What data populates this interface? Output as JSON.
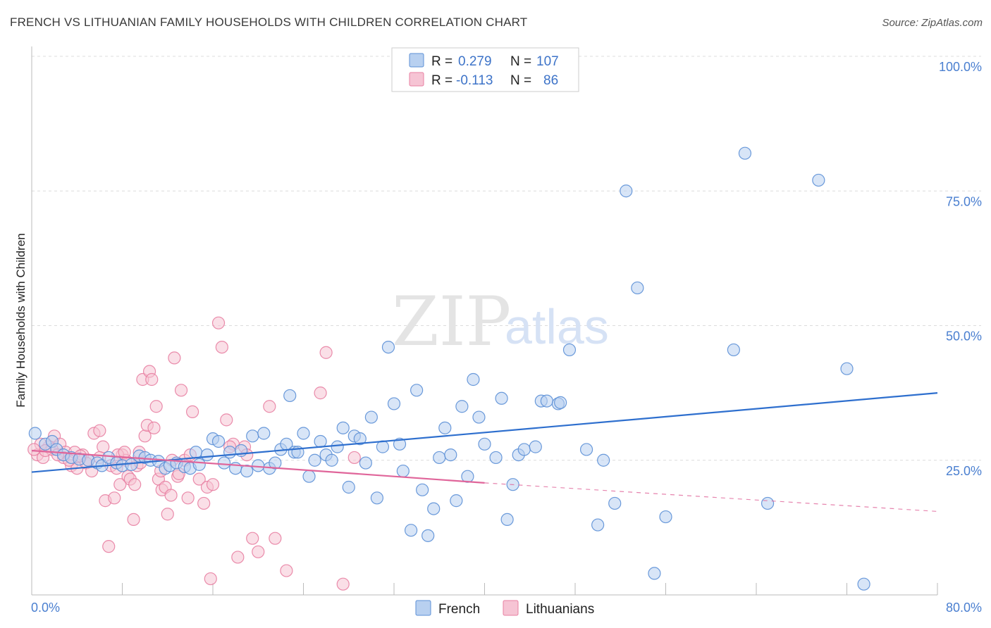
{
  "header": {
    "title": "FRENCH VS LITHUANIAN FAMILY HOUSEHOLDS WITH CHILDREN CORRELATION CHART",
    "source": "Source: ZipAtlas.com"
  },
  "legend": {
    "r_label": "R =",
    "n_label": "N =",
    "french_r": "0.279",
    "french_n": "107",
    "lith_r": "-0.113",
    "lith_n": "86"
  },
  "watermark": {
    "zip": "ZIP",
    "atlas": "atlas"
  },
  "chart_data": {
    "type": "scatter",
    "ylabel": "Family Households with Children",
    "xlim": [
      0,
      80
    ],
    "ylim": [
      0,
      100
    ],
    "x_tick_labels": [
      "0.0%",
      "80.0%"
    ],
    "y_tick_labels": [
      "25.0%",
      "50.0%",
      "75.0%",
      "100.0%"
    ],
    "y_ticks": [
      25,
      50,
      75,
      100
    ],
    "grid": true,
    "colors": {
      "french": "#5b8fd6",
      "french_fill": "#b8d0f0",
      "lith": "#e87fa2",
      "lith_fill": "#f6c4d4",
      "french_line": "#2e6fce",
      "lith_line": "#e0659a"
    },
    "series": [
      {
        "name": "French",
        "trend": {
          "x0": 0,
          "y0": 22.8,
          "x1": 80,
          "y1": 37.5
        },
        "points": [
          [
            0.3,
            30.0
          ],
          [
            1.2,
            28.0
          ],
          [
            1.8,
            28.5
          ],
          [
            2.2,
            27.0
          ],
          [
            2.8,
            26.0
          ],
          [
            3.5,
            25.5
          ],
          [
            4.2,
            25.2
          ],
          [
            5.0,
            25.0
          ],
          [
            5.8,
            24.5
          ],
          [
            6.2,
            24.0
          ],
          [
            6.8,
            25.5
          ],
          [
            7.5,
            24.5
          ],
          [
            8.0,
            24.0
          ],
          [
            8.8,
            24.2
          ],
          [
            9.5,
            25.8
          ],
          [
            10.0,
            25.5
          ],
          [
            10.5,
            25.0
          ],
          [
            11.2,
            24.8
          ],
          [
            11.8,
            23.5
          ],
          [
            12.2,
            24.0
          ],
          [
            12.8,
            24.5
          ],
          [
            13.5,
            23.8
          ],
          [
            14.0,
            23.5
          ],
          [
            14.5,
            26.5
          ],
          [
            14.8,
            24.2
          ],
          [
            15.5,
            26.0
          ],
          [
            16.0,
            29.0
          ],
          [
            16.5,
            28.5
          ],
          [
            17.0,
            24.5
          ],
          [
            17.5,
            26.5
          ],
          [
            18.0,
            23.5
          ],
          [
            18.5,
            26.8
          ],
          [
            19.0,
            23.0
          ],
          [
            19.5,
            29.5
          ],
          [
            20.0,
            24.0
          ],
          [
            20.5,
            30.0
          ],
          [
            21.0,
            23.5
          ],
          [
            21.5,
            24.5
          ],
          [
            22.0,
            27.0
          ],
          [
            22.5,
            28.0
          ],
          [
            22.8,
            37.0
          ],
          [
            23.2,
            26.5
          ],
          [
            23.5,
            26.5
          ],
          [
            24.0,
            30.0
          ],
          [
            24.5,
            22.0
          ],
          [
            25.0,
            25.0
          ],
          [
            25.5,
            28.5
          ],
          [
            26.0,
            26.0
          ],
          [
            26.5,
            25.0
          ],
          [
            27.0,
            27.5
          ],
          [
            27.5,
            31.0
          ],
          [
            28.0,
            20.0
          ],
          [
            28.5,
            29.5
          ],
          [
            29.0,
            29.0
          ],
          [
            29.5,
            24.5
          ],
          [
            30.0,
            33.0
          ],
          [
            30.5,
            18.0
          ],
          [
            31.0,
            27.5
          ],
          [
            31.5,
            46.0
          ],
          [
            32.0,
            35.5
          ],
          [
            32.5,
            28.0
          ],
          [
            32.8,
            23.0
          ],
          [
            33.5,
            12.0
          ],
          [
            34.0,
            38.0
          ],
          [
            34.5,
            19.5
          ],
          [
            35.0,
            11.0
          ],
          [
            35.5,
            16.0
          ],
          [
            36.0,
            25.5
          ],
          [
            36.5,
            31.0
          ],
          [
            37.0,
            26.0
          ],
          [
            37.5,
            17.5
          ],
          [
            38.0,
            35.0
          ],
          [
            38.5,
            22.0
          ],
          [
            39.0,
            40.0
          ],
          [
            39.5,
            33.0
          ],
          [
            40.0,
            28.0
          ],
          [
            41.0,
            25.5
          ],
          [
            41.5,
            36.5
          ],
          [
            42.0,
            14.0
          ],
          [
            42.5,
            20.5
          ],
          [
            43.0,
            26.0
          ],
          [
            43.5,
            27.0
          ],
          [
            44.5,
            27.5
          ],
          [
            45.0,
            36.0
          ],
          [
            45.5,
            36.0
          ],
          [
            46.5,
            35.5
          ],
          [
            46.7,
            35.7
          ],
          [
            49.0,
            27.0
          ],
          [
            50.0,
            13.0
          ],
          [
            50.5,
            25.0
          ],
          [
            51.5,
            17.0
          ],
          [
            52.5,
            75.0
          ],
          [
            53.5,
            57.0
          ],
          [
            55.0,
            4.0
          ],
          [
            56.0,
            14.5
          ],
          [
            62.0,
            45.5
          ],
          [
            63.0,
            82.0
          ],
          [
            65.0,
            17.0
          ],
          [
            69.5,
            77.0
          ],
          [
            72.0,
            42.0
          ],
          [
            73.5,
            2.0
          ],
          [
            47.5,
            45.5
          ]
        ]
      },
      {
        "name": "Lithuanians",
        "trend": {
          "x0": 0,
          "y0": 26.8,
          "x1": 40,
          "y1": 20.8,
          "dash_x1": 80,
          "dash_y1": 15.5
        },
        "points": [
          [
            0.5,
            26.0
          ],
          [
            1.0,
            25.5
          ],
          [
            1.5,
            27.5
          ],
          [
            2.0,
            29.5
          ],
          [
            2.5,
            28.0
          ],
          [
            3.0,
            26.5
          ],
          [
            3.5,
            24.0
          ],
          [
            4.0,
            23.5
          ],
          [
            4.5,
            26.0
          ],
          [
            5.0,
            25.0
          ],
          [
            5.5,
            30.0
          ],
          [
            6.0,
            30.5
          ],
          [
            6.3,
            27.5
          ],
          [
            6.5,
            17.5
          ],
          [
            6.8,
            9.0
          ],
          [
            7.0,
            24.0
          ],
          [
            7.3,
            18.0
          ],
          [
            7.5,
            23.5
          ],
          [
            7.8,
            20.5
          ],
          [
            8.0,
            26.0
          ],
          [
            8.3,
            25.0
          ],
          [
            8.5,
            22.0
          ],
          [
            8.7,
            21.5
          ],
          [
            9.0,
            14.0
          ],
          [
            9.3,
            24.0
          ],
          [
            9.5,
            26.5
          ],
          [
            9.8,
            40.0
          ],
          [
            10.0,
            29.5
          ],
          [
            10.2,
            31.5
          ],
          [
            10.4,
            41.5
          ],
          [
            10.6,
            40.0
          ],
          [
            11.0,
            35.0
          ],
          [
            11.2,
            21.5
          ],
          [
            11.5,
            19.5
          ],
          [
            11.8,
            20.0
          ],
          [
            12.0,
            15.0
          ],
          [
            12.3,
            18.5
          ],
          [
            12.6,
            44.0
          ],
          [
            12.9,
            22.0
          ],
          [
            13.2,
            38.0
          ],
          [
            13.5,
            25.0
          ],
          [
            13.8,
            18.0
          ],
          [
            14.2,
            34.0
          ],
          [
            14.8,
            21.5
          ],
          [
            15.2,
            17.0
          ],
          [
            15.5,
            20.0
          ],
          [
            15.8,
            3.0
          ],
          [
            16.5,
            50.5
          ],
          [
            16.8,
            46.0
          ],
          [
            17.2,
            32.5
          ],
          [
            17.8,
            28.0
          ],
          [
            18.2,
            7.0
          ],
          [
            18.8,
            27.5
          ],
          [
            19.5,
            10.5
          ],
          [
            20.0,
            8.0
          ],
          [
            21.0,
            35.0
          ],
          [
            21.5,
            10.5
          ],
          [
            22.5,
            4.5
          ],
          [
            25.5,
            37.5
          ],
          [
            26.0,
            45.0
          ],
          [
            27.5,
            2.0
          ],
          [
            28.5,
            25.5
          ],
          [
            0.8,
            28.0
          ],
          [
            1.8,
            27.0
          ],
          [
            2.8,
            25.5
          ],
          [
            3.8,
            26.5
          ],
          [
            4.8,
            24.5
          ],
          [
            5.3,
            23.0
          ],
          [
            6.0,
            25.5
          ],
          [
            7.6,
            26.0
          ],
          [
            8.2,
            26.5
          ],
          [
            9.6,
            24.5
          ],
          [
            10.8,
            31.0
          ],
          [
            12.4,
            25.0
          ],
          [
            1.2,
            26.8
          ],
          [
            2.3,
            26.0
          ],
          [
            3.3,
            25.0
          ],
          [
            4.3,
            25.8
          ],
          [
            0.2,
            27.0
          ],
          [
            16.0,
            20.5
          ],
          [
            14.0,
            26.0
          ],
          [
            11.4,
            23.0
          ],
          [
            9.1,
            20.5
          ],
          [
            17.5,
            27.5
          ],
          [
            13.0,
            22.5
          ],
          [
            19.0,
            26.0
          ]
        ]
      }
    ]
  }
}
